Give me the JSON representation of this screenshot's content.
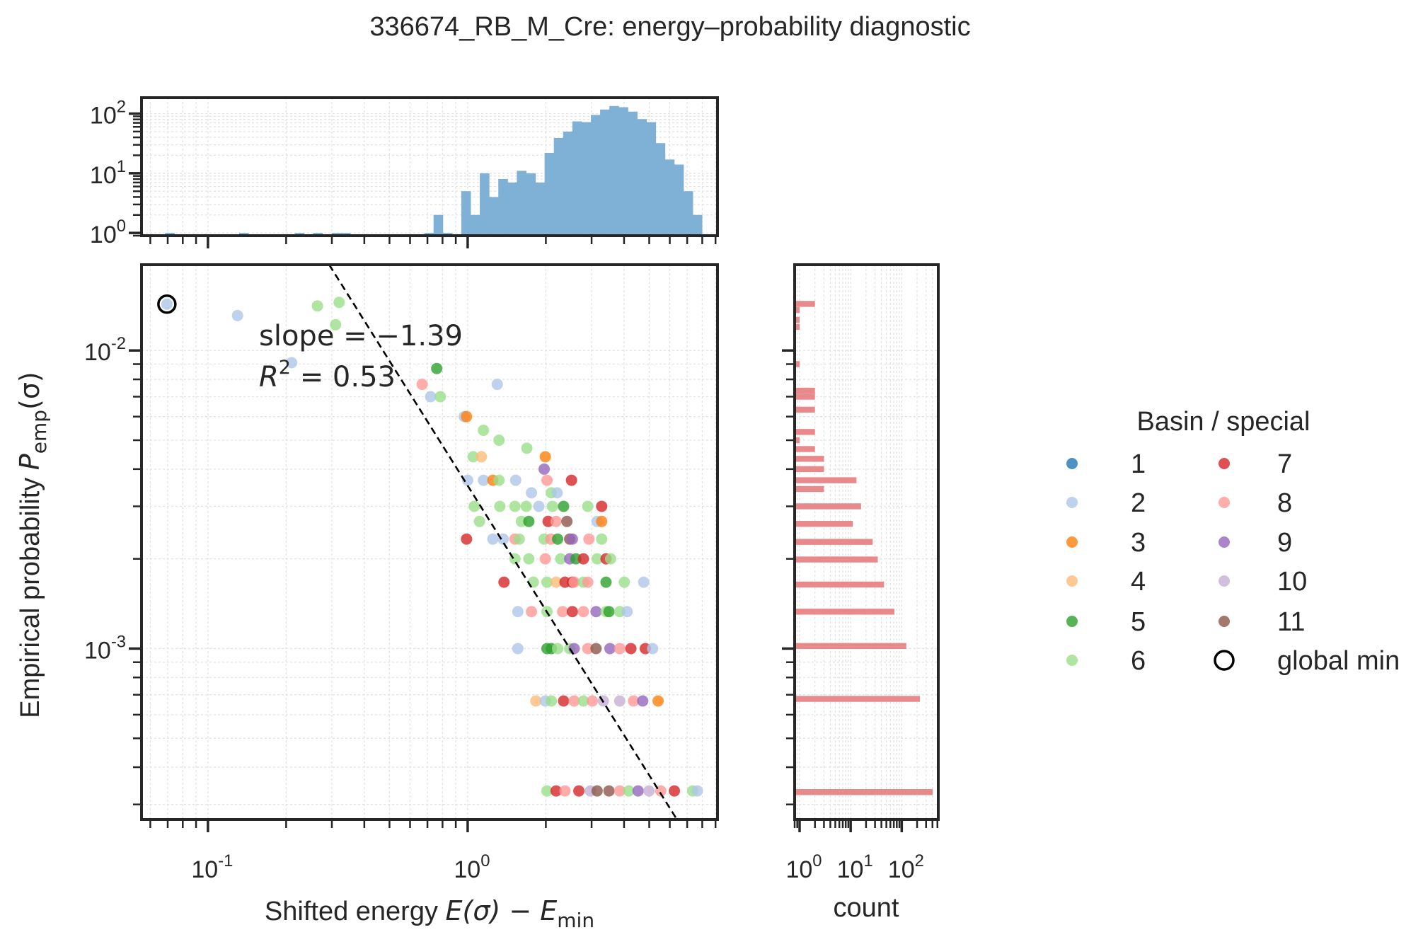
{
  "title": "336674_RB_M_Cre: energy–probability diagnostic",
  "colors": {
    "1": "#1f77b4",
    "2": "#aec7e8",
    "3": "#ff7f0e",
    "4": "#ffbb78",
    "5": "#2ca02c",
    "6": "#98df8a",
    "7": "#d62728",
    "8": "#ff9896",
    "9": "#9467bd",
    "10": "#c5b0d5",
    "11": "#8c564b",
    "top_hist": "#7fb0d5",
    "right_hist": "#e8898b",
    "spine": "#262626"
  },
  "chart_data": [
    {
      "id": "main",
      "type": "scatter",
      "xlabel": {
        "text": "Shifted energy  ",
        "math": "E(σ) − E",
        "sub": "min"
      },
      "ylabel": {
        "text": "Empirical probability  ",
        "math": "P",
        "sub": "emp",
        "tail": "(σ)"
      },
      "xscale": "log",
      "yscale": "log",
      "xlim": [
        0.0555,
        9.16
      ],
      "ylim": [
        0.000267,
        0.0194
      ],
      "grid": true,
      "xticks": [
        {
          "value": 0.1,
          "base": "10",
          "exp": "-1"
        },
        {
          "value": 1,
          "base": "10",
          "exp": "0"
        }
      ],
      "yticks": [
        {
          "value": 0.001,
          "base": "10",
          "exp": "-3"
        },
        {
          "value": 0.01,
          "base": "10",
          "exp": "-2"
        }
      ],
      "fit": {
        "slope": -1.39,
        "intercept_at_x1": 0.00352,
        "style": "dashed black"
      },
      "annotation": {
        "slope_text": "slope = −1.39",
        "r2_label": "R",
        "r2_exp": "2",
        "r2_value": " = 0.53"
      },
      "global_min": {
        "x": 0.0695,
        "y": 0.0143,
        "basin": 2
      },
      "points": [
        [
          0.0695,
          0.0143,
          2
        ],
        [
          0.13,
          0.0131,
          2
        ],
        [
          0.264,
          0.0141,
          6
        ],
        [
          0.32,
          0.0145,
          6
        ],
        [
          0.31,
          0.0122,
          6
        ],
        [
          0.21,
          0.0091,
          2
        ],
        [
          0.76,
          0.0087,
          5
        ],
        [
          0.668,
          0.0077,
          8
        ],
        [
          0.72,
          0.007,
          2
        ],
        [
          0.785,
          0.007,
          6
        ],
        [
          1.3,
          0.0077,
          2
        ],
        [
          0.97,
          0.006,
          2
        ],
        [
          0.99,
          0.006,
          3
        ],
        [
          1.15,
          0.0054,
          6
        ],
        [
          1.32,
          0.005,
          6
        ],
        [
          1.69,
          0.0047,
          6
        ],
        [
          1.05,
          0.0044,
          6
        ],
        [
          1.13,
          0.0044,
          4
        ],
        [
          1.99,
          0.0044,
          3
        ],
        [
          1.97,
          0.004,
          9
        ],
        [
          1.0,
          0.00367,
          2
        ],
        [
          1.15,
          0.00367,
          2
        ],
        [
          1.25,
          0.00367,
          3
        ],
        [
          1.32,
          0.00367,
          6
        ],
        [
          1.53,
          0.00367,
          2
        ],
        [
          2.02,
          0.00367,
          8
        ],
        [
          2.51,
          0.00367,
          7
        ],
        [
          1.76,
          0.00333,
          2
        ],
        [
          2.1,
          0.00333,
          6
        ],
        [
          2.21,
          0.00333,
          2
        ],
        [
          1.06,
          0.003,
          6
        ],
        [
          1.33,
          0.003,
          6
        ],
        [
          1.52,
          0.003,
          6
        ],
        [
          1.68,
          0.003,
          6
        ],
        [
          1.88,
          0.003,
          2
        ],
        [
          2.12,
          0.003,
          6
        ],
        [
          2.34,
          0.003,
          5
        ],
        [
          2.9,
          0.003,
          6
        ],
        [
          3.28,
          0.003,
          7
        ],
        [
          1.11,
          0.00267,
          6
        ],
        [
          1.61,
          0.00267,
          6
        ],
        [
          1.72,
          0.00267,
          5
        ],
        [
          2.04,
          0.00267,
          7
        ],
        [
          2.19,
          0.00267,
          8
        ],
        [
          2.41,
          0.00267,
          11
        ],
        [
          3.15,
          0.00267,
          2
        ],
        [
          3.28,
          0.00267,
          3
        ],
        [
          0.99,
          0.00233,
          7
        ],
        [
          1.25,
          0.00233,
          2
        ],
        [
          1.37,
          0.00233,
          2
        ],
        [
          1.52,
          0.00233,
          8
        ],
        [
          1.58,
          0.00233,
          6
        ],
        [
          1.97,
          0.00233,
          6
        ],
        [
          2.09,
          0.00233,
          8
        ],
        [
          2.22,
          0.00233,
          5
        ],
        [
          2.47,
          0.00233,
          11
        ],
        [
          2.53,
          0.00233,
          9
        ],
        [
          2.93,
          0.00233,
          8
        ],
        [
          3.28,
          0.00233,
          6
        ],
        [
          1.52,
          0.002,
          6
        ],
        [
          1.72,
          0.002,
          6
        ],
        [
          1.99,
          0.002,
          8
        ],
        [
          2.28,
          0.002,
          6
        ],
        [
          2.47,
          0.002,
          9
        ],
        [
          2.61,
          0.002,
          5
        ],
        [
          2.79,
          0.002,
          7
        ],
        [
          3.15,
          0.002,
          6
        ],
        [
          3.41,
          0.002,
          7
        ],
        [
          3.55,
          0.002,
          6
        ],
        [
          1.38,
          0.00167,
          7
        ],
        [
          1.79,
          0.00167,
          6
        ],
        [
          2.02,
          0.00167,
          6
        ],
        [
          2.19,
          0.00167,
          4
        ],
        [
          2.37,
          0.00167,
          7
        ],
        [
          2.53,
          0.00167,
          7
        ],
        [
          2.57,
          0.00167,
          8
        ],
        [
          2.79,
          0.00167,
          6
        ],
        [
          2.9,
          0.00167,
          8
        ],
        [
          3.41,
          0.00167,
          5
        ],
        [
          4.01,
          0.00167,
          6
        ],
        [
          4.76,
          0.00167,
          2
        ],
        [
          1.56,
          0.00133,
          2
        ],
        [
          1.76,
          0.00133,
          8
        ],
        [
          2.02,
          0.00133,
          6
        ],
        [
          2.32,
          0.00133,
          8
        ],
        [
          2.53,
          0.00133,
          7
        ],
        [
          2.79,
          0.00133,
          8
        ],
        [
          3.12,
          0.00133,
          9
        ],
        [
          3.41,
          0.00133,
          6
        ],
        [
          3.5,
          0.00133,
          5
        ],
        [
          3.85,
          0.00133,
          6
        ],
        [
          4.11,
          0.00133,
          2
        ],
        [
          1.56,
          0.001,
          2
        ],
        [
          2.02,
          0.001,
          5
        ],
        [
          2.1,
          0.001,
          5
        ],
        [
          2.22,
          0.001,
          6
        ],
        [
          2.47,
          0.001,
          6
        ],
        [
          2.57,
          0.001,
          9
        ],
        [
          2.9,
          0.001,
          8
        ],
        [
          3.12,
          0.001,
          11
        ],
        [
          3.53,
          0.001,
          9
        ],
        [
          3.85,
          0.001,
          8
        ],
        [
          4.25,
          0.001,
          7
        ],
        [
          4.83,
          0.001,
          7
        ],
        [
          5.15,
          0.001,
          2
        ],
        [
          1.83,
          0.000667,
          4
        ],
        [
          1.99,
          0.000667,
          2
        ],
        [
          2.1,
          0.000667,
          6
        ],
        [
          2.34,
          0.000667,
          7
        ],
        [
          2.57,
          0.000667,
          8
        ],
        [
          2.79,
          0.000667,
          6
        ],
        [
          3.02,
          0.000667,
          8
        ],
        [
          3.33,
          0.000667,
          10
        ],
        [
          3.85,
          0.000667,
          10
        ],
        [
          4.35,
          0.000667,
          8
        ],
        [
          4.72,
          0.000667,
          9
        ],
        [
          5.41,
          0.000667,
          3
        ],
        [
          2.02,
          0.000333,
          6
        ],
        [
          2.19,
          0.000333,
          7
        ],
        [
          2.37,
          0.000333,
          8
        ],
        [
          2.68,
          0.000333,
          7
        ],
        [
          2.97,
          0.000333,
          10
        ],
        [
          3.15,
          0.000333,
          11
        ],
        [
          3.5,
          0.000333,
          11
        ],
        [
          3.85,
          0.000333,
          8
        ],
        [
          4.17,
          0.000333,
          6
        ],
        [
          4.53,
          0.000333,
          9
        ],
        [
          4.99,
          0.000333,
          10
        ],
        [
          5.54,
          0.000333,
          8
        ],
        [
          6.25,
          0.000333,
          7
        ],
        [
          7.35,
          0.000333,
          6
        ],
        [
          7.66,
          0.000333,
          2
        ]
      ]
    },
    {
      "id": "top_hist",
      "type": "bar",
      "xscale": "log",
      "yscale": "log",
      "xlim": [
        0.0555,
        9.16
      ],
      "ylim": [
        0.9,
        185
      ],
      "bin_range": [
        0.0684,
        7.98
      ],
      "yticks": [
        {
          "value": 1,
          "base": "10",
          "exp": "0"
        },
        {
          "value": 10,
          "base": "10",
          "exp": "1"
        },
        {
          "value": 100,
          "base": "10",
          "exp": "2"
        }
      ],
      "counts": [
        1,
        0,
        0,
        0,
        0,
        0,
        0,
        0,
        1,
        0,
        0,
        0,
        0,
        0,
        1,
        0,
        1,
        0,
        1,
        1,
        0,
        0,
        0,
        0,
        0,
        0,
        0,
        0,
        1,
        2,
        1,
        0,
        5,
        2,
        10,
        4,
        8,
        7,
        11,
        10,
        7,
        22,
        39,
        50,
        74,
        72,
        95,
        117,
        134,
        128,
        108,
        81,
        72,
        32,
        17,
        14,
        5,
        2
      ]
    },
    {
      "id": "right_hist",
      "type": "bar",
      "orientation": "horizontal",
      "xlabel": "count",
      "xscale": "log",
      "yscale": "log",
      "xlim": [
        0.8,
        520
      ],
      "bin_width_log10": 0.02,
      "xticks": [
        {
          "value": 1,
          "base": "10",
          "exp": "0"
        },
        {
          "value": 10,
          "base": "10",
          "exp": "1"
        },
        {
          "value": 100,
          "base": "10",
          "exp": "2"
        }
      ],
      "bars": [
        {
          "p": 0.01433,
          "count": 2
        },
        {
          "p": 0.01367,
          "count": 1
        },
        {
          "p": 0.01267,
          "count": 1
        },
        {
          "p": 0.012,
          "count": 1
        },
        {
          "p": 0.009,
          "count": 1
        },
        {
          "p": 0.00733,
          "count": 2
        },
        {
          "p": 0.007,
          "count": 2
        },
        {
          "p": 0.00633,
          "count": 2
        },
        {
          "p": 0.00533,
          "count": 2
        },
        {
          "p": 0.005,
          "count": 1
        },
        {
          "p": 0.00467,
          "count": 2
        },
        {
          "p": 0.00433,
          "count": 3
        },
        {
          "p": 0.004,
          "count": 3
        },
        {
          "p": 0.00367,
          "count": 13
        },
        {
          "p": 0.00343,
          "count": 3
        },
        {
          "p": 0.003,
          "count": 16
        },
        {
          "p": 0.00262,
          "count": 11
        },
        {
          "p": 0.00228,
          "count": 27
        },
        {
          "p": 0.00199,
          "count": 34
        },
        {
          "p": 0.00164,
          "count": 45
        },
        {
          "p": 0.00133,
          "count": 72
        },
        {
          "p": 0.00102,
          "count": 123
        },
        {
          "p": 0.000678,
          "count": 227
        },
        {
          "p": 0.00033,
          "count": 405
        }
      ]
    }
  ],
  "legend": {
    "title": "Basin / special",
    "items": [
      {
        "label": "1",
        "key": "1"
      },
      {
        "label": "2",
        "key": "2"
      },
      {
        "label": "3",
        "key": "3"
      },
      {
        "label": "4",
        "key": "4"
      },
      {
        "label": "5",
        "key": "5"
      },
      {
        "label": "6",
        "key": "6"
      },
      {
        "label": "7",
        "key": "7"
      },
      {
        "label": "8",
        "key": "8"
      },
      {
        "label": "9",
        "key": "9"
      },
      {
        "label": "10",
        "key": "10"
      },
      {
        "label": "11",
        "key": "11"
      },
      {
        "label": "global min",
        "key": "global_min"
      }
    ]
  }
}
